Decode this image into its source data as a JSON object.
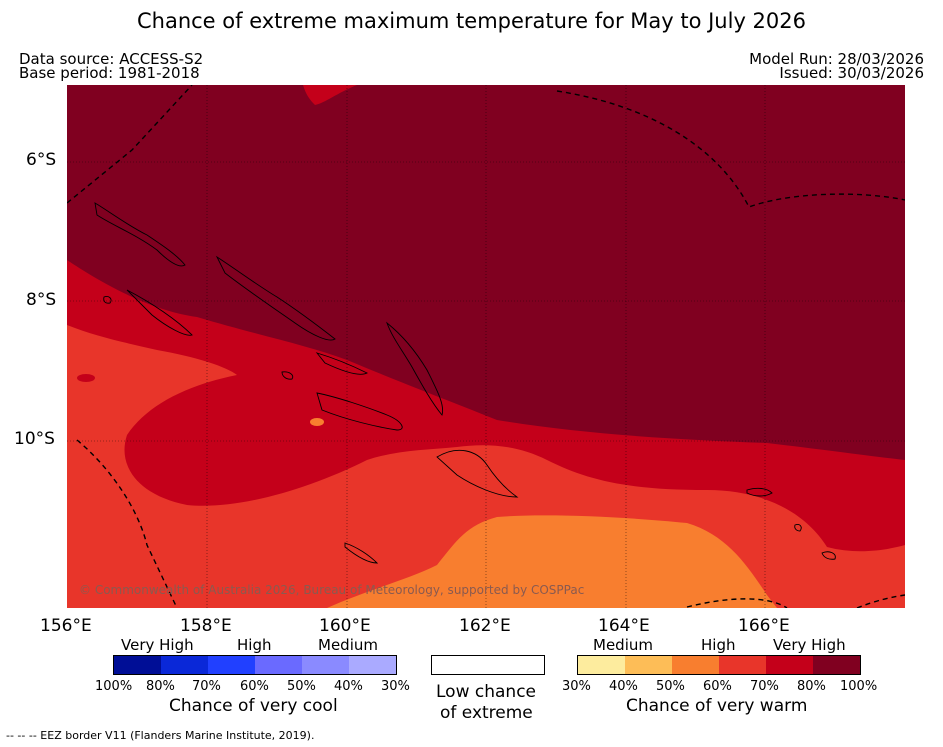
{
  "title": "Chance of extreme maximum temperature for May to July 2026",
  "meta": {
    "data_source": "Data source: ACCESS-S2",
    "base_period": "Base period: 1981-2018",
    "model_run": "Model Run: 28/03/2026",
    "issued": "Issued: 30/03/2026"
  },
  "map": {
    "copyright": "© Commonwealth of Australia 2026, Bureau of Meteorology, supported by COSPPac",
    "lat_labels": [
      "6°S",
      "8°S",
      "10°S"
    ],
    "lon_labels": [
      "156°E",
      "158°E",
      "160°E",
      "162°E",
      "164°E",
      "166°E"
    ],
    "colors": {
      "very_high_warm": "#800020",
      "high_warm": "#c4001a",
      "medium_warm": "#e8352a",
      "medium_warm_low": "#f87e2f"
    }
  },
  "legend": {
    "cool": {
      "categories": [
        "Very High",
        "High",
        "Medium"
      ],
      "percents": [
        "100%",
        "80%",
        "70%",
        "60%",
        "50%",
        "40%",
        "30%"
      ],
      "caption": "Chance of very cool",
      "colors": [
        "#000e96",
        "#0a28d8",
        "#2140ff",
        "#6a6aff",
        "#8a8aff",
        "#aaaaff"
      ]
    },
    "neutral": {
      "caption_line1": "Low chance",
      "caption_line2": "of extreme",
      "color": "#ffffff"
    },
    "warm": {
      "categories": [
        "Medium",
        "High",
        "Very High"
      ],
      "percents": [
        "30%",
        "40%",
        "50%",
        "60%",
        "70%",
        "80%",
        "100%"
      ],
      "caption": "Chance of very warm",
      "colors": [
        "#fdec9e",
        "#fdbd57",
        "#f87e2f",
        "#e8352a",
        "#c4001a",
        "#800020"
      ]
    }
  },
  "footer": "--  --  -- EEZ border V11 (Flanders Marine Institute, 2019)."
}
